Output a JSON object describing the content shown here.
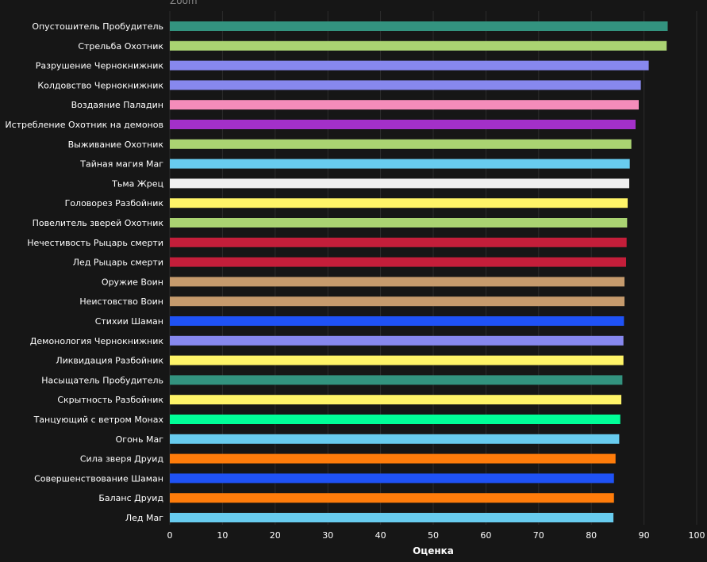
{
  "zoom_label": "Zoom",
  "chart_data": {
    "type": "bar",
    "orientation": "horizontal",
    "xlabel": "Оценка",
    "ylabel": "",
    "xlim": [
      0,
      100
    ],
    "xticks": [
      0,
      10,
      20,
      30,
      40,
      50,
      60,
      70,
      80,
      90,
      100
    ],
    "grid": true,
    "categories": [
      "Опустошитель Пробудитель",
      "Стрельба Охотник",
      "Разрушение Чернокнижник",
      "Колдовство Чернокнижник",
      "Воздаяние Паладин",
      "Истребление Охотник на демонов",
      "Выживание Охотник",
      "Тайная магия Маг",
      "Тьма Жрец",
      "Головорез Разбойник",
      "Повелитель зверей Охотник",
      "Нечестивость Рыцарь смерти",
      "Лед Рыцарь смерти",
      "Оружие Воин",
      "Неистовство Воин",
      "Стихии Шаман",
      "Демонология Чернокнижник",
      "Ликвидация Разбойник",
      "Насыщатель Пробудитель",
      "Скрытность Разбойник",
      "Танцующий с ветром Монах",
      "Огонь Маг",
      "Сила зверя Друид",
      "Совершенствование Шаман",
      "Баланс Друид",
      "Лед Маг"
    ],
    "values": [
      94.5,
      94.3,
      90.9,
      89.4,
      89.0,
      88.4,
      87.6,
      87.3,
      87.2,
      86.9,
      86.8,
      86.7,
      86.6,
      86.3,
      86.3,
      86.2,
      86.1,
      86.1,
      85.9,
      85.7,
      85.5,
      85.3,
      84.6,
      84.3,
      84.3,
      84.2
    ],
    "colors": [
      "#33937F",
      "#AAD372",
      "#8788EE",
      "#8788EE",
      "#F48CBA",
      "#A330C9",
      "#AAD372",
      "#68CCEF",
      "#F0F0F0",
      "#FFF468",
      "#AAD372",
      "#C41E3A",
      "#C41E3A",
      "#C69B6D",
      "#C69B6D",
      "#1F52F5",
      "#8788EE",
      "#FFF468",
      "#33937F",
      "#FFF468",
      "#00FF98",
      "#68CCEF",
      "#FF7C0A",
      "#1F52F5",
      "#FF7C0A",
      "#68CCEF"
    ]
  }
}
